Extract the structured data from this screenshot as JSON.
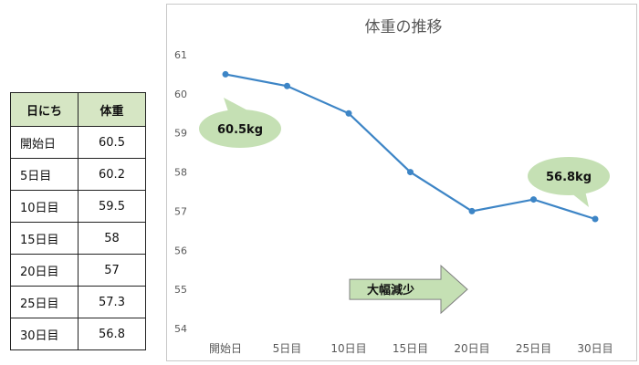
{
  "table": {
    "headers": [
      "日にち",
      "体重"
    ],
    "rows": [
      {
        "day": "開始日",
        "weight": "60.5"
      },
      {
        "day": "5日目",
        "weight": "60.2"
      },
      {
        "day": "10日目",
        "weight": "59.5"
      },
      {
        "day": "15日目",
        "weight": "58"
      },
      {
        "day": "20日目",
        "weight": "57"
      },
      {
        "day": "25日目",
        "weight": "57.3"
      },
      {
        "day": "30日目",
        "weight": "56.8"
      }
    ]
  },
  "chart_data": {
    "type": "line",
    "title": "体重の推移",
    "xlabel": "",
    "ylabel": "",
    "categories": [
      "開始日",
      "5日目",
      "10日目",
      "15日目",
      "20日目",
      "25日目",
      "30日目"
    ],
    "values": [
      60.5,
      60.2,
      59.5,
      58,
      57,
      57.3,
      56.8
    ],
    "ylim": [
      54,
      61
    ],
    "yticks": [
      "54",
      "55",
      "56",
      "57",
      "58",
      "59",
      "60",
      "61"
    ],
    "grid": false,
    "legend": "none",
    "line_color": "#3d85c6",
    "annotations": [
      {
        "text": "60.5kg",
        "point_index": 0
      },
      {
        "text": "56.8kg",
        "point_index": 6
      }
    ],
    "arrow_label": "大幅減少",
    "callout_color": "#c5e0b4",
    "arrow_color": "#c5e0b4"
  }
}
